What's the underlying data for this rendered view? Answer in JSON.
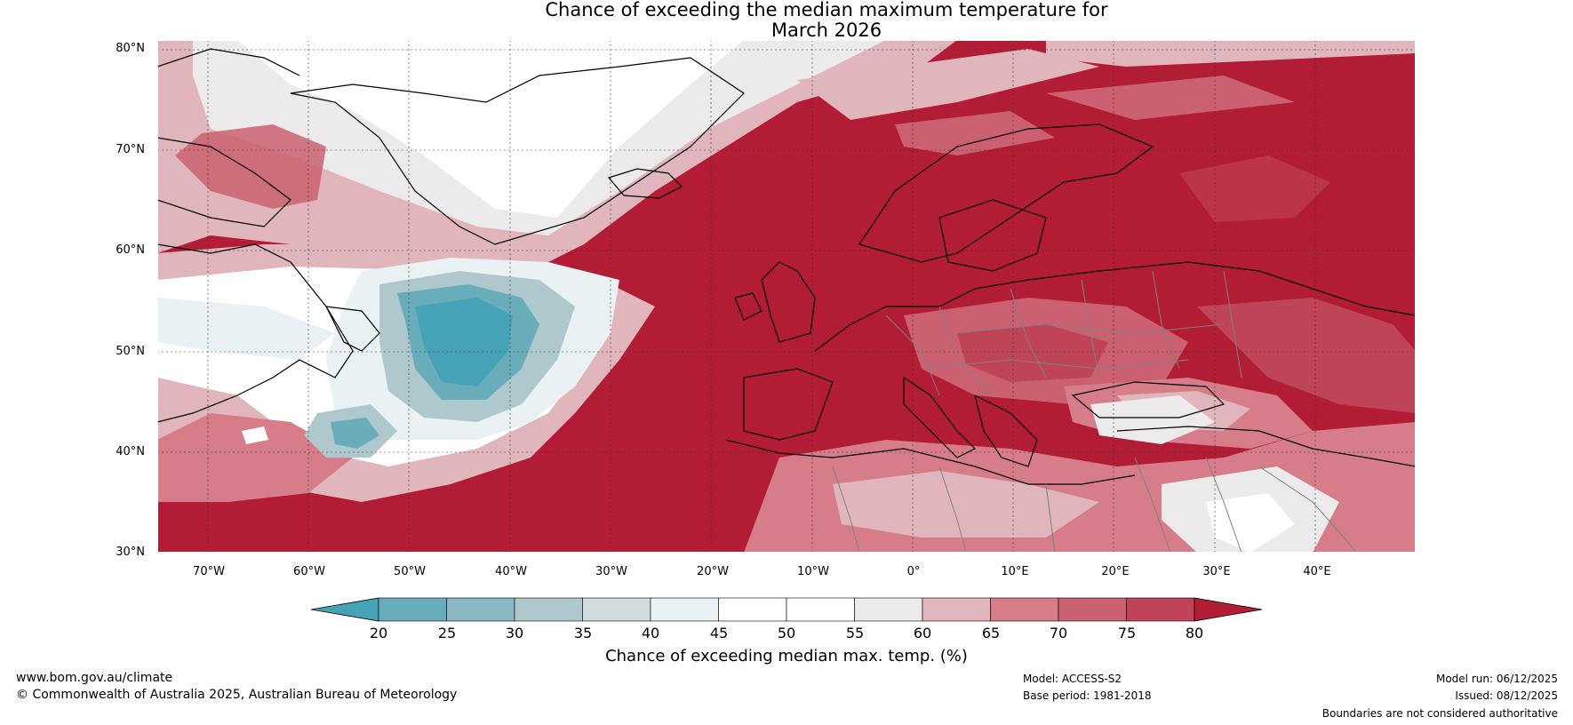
{
  "title": {
    "line1": "Chance of exceeding the median maximum temperature for",
    "line2": "March 2026"
  },
  "map": {
    "lat_labels": [
      "80°N",
      "70°N",
      "60°N",
      "50°N",
      "40°N",
      "30°N"
    ],
    "lon_labels": [
      "70°W",
      "60°W",
      "50°W",
      "40°W",
      "30°W",
      "20°W",
      "10°W",
      "0°",
      "10°E",
      "20°E",
      "30°E",
      "40°E"
    ],
    "lat_range": [
      30,
      81
    ],
    "lon_range": [
      -75,
      50
    ],
    "ocean_color": "#b31c35",
    "land_outline_color": "#000000",
    "border_color": "#808080"
  },
  "colorbar": {
    "ticks": [
      "20",
      "25",
      "30",
      "35",
      "40",
      "45",
      "50",
      "55",
      "60",
      "65",
      "70",
      "75",
      "80"
    ],
    "colors": [
      "#46a3b7",
      "#69adbb",
      "#8ab9c5",
      "#aec8cd",
      "#d2dcde",
      "#eaf1f3",
      "#ffffff",
      "#ffffff",
      "#eceaea",
      "#e0b6bc",
      "#d77d8a",
      "#cb6170",
      "#bf4458",
      "#b31c35"
    ],
    "label": "Chance of exceeding median max. temp. (%)"
  },
  "footer": {
    "website": "www.bom.gov.au/climate",
    "copyright": "© Commonwealth of Australia 2025, Australian Bureau of Meteorology",
    "model": "Model: ACCESS-S2",
    "base_period": "Base period: 1981-2018",
    "model_run": "Model run: 06/12/2025",
    "issued": "Issued: 08/12/2025",
    "disclaimer": "Boundaries are not considered authoritative"
  }
}
